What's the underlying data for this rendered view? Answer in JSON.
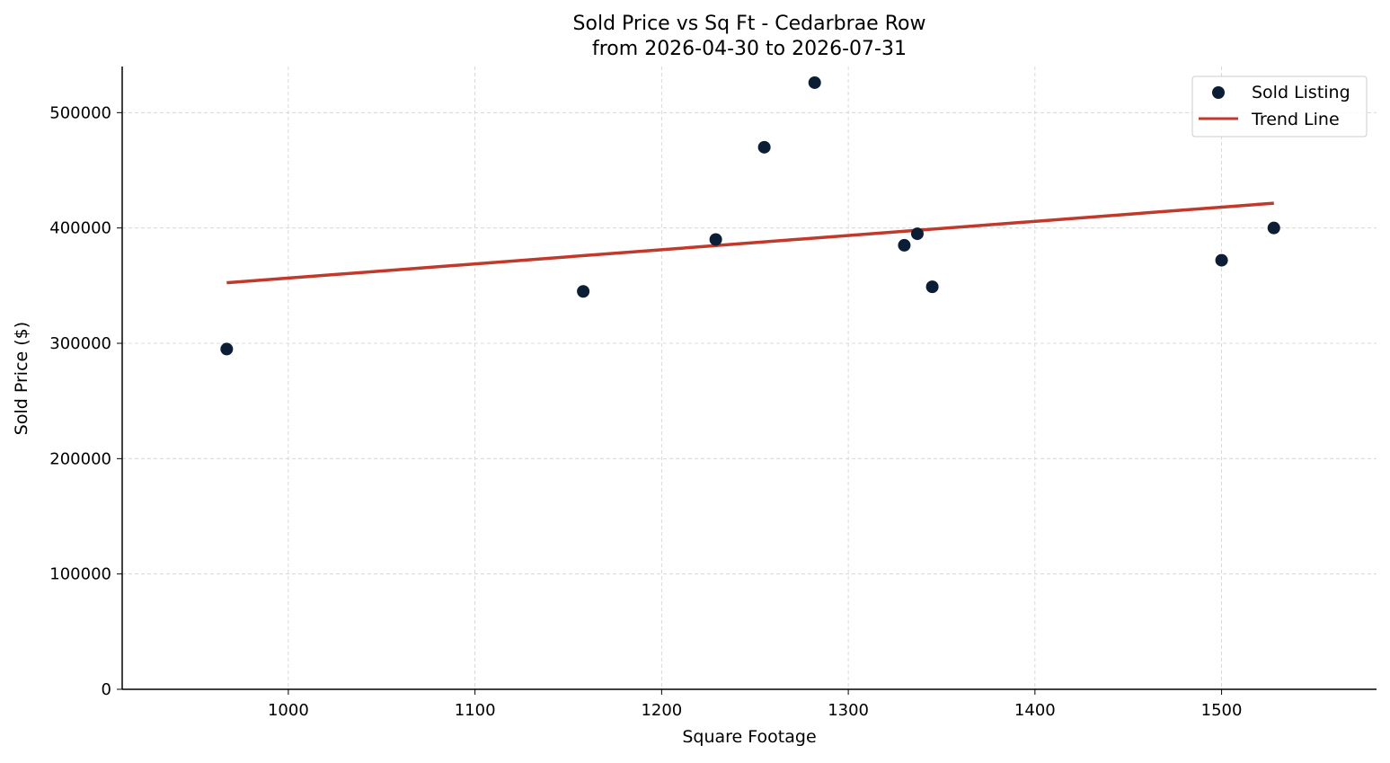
{
  "chart_data": {
    "type": "scatter",
    "title": "Sold Price vs Sq Ft - Cedarbrae Row",
    "subtitle": "from 2026-04-30 to 2026-07-31",
    "xlabel": "Square Footage",
    "ylabel": "Sold Price ($)",
    "xlim": [
      911,
      1583
    ],
    "ylim": [
      0,
      540000
    ],
    "x_ticks": [
      1000,
      1100,
      1200,
      1300,
      1400,
      1500
    ],
    "x_tick_labels": [
      "1000",
      "1100",
      "1200",
      "1300",
      "1400",
      "1500"
    ],
    "y_ticks": [
      0,
      100000,
      200000,
      300000,
      400000,
      500000
    ],
    "y_tick_labels": [
      "0",
      "100000",
      "200000",
      "300000",
      "400000",
      "500000"
    ],
    "grid": true,
    "legend_position": "top-right",
    "series": [
      {
        "name": "Sold Listing",
        "kind": "scatter",
        "color": "#0b1e35",
        "points": [
          {
            "x": 967,
            "y": 295000
          },
          {
            "x": 1158,
            "y": 345000
          },
          {
            "x": 1229,
            "y": 390000
          },
          {
            "x": 1255,
            "y": 470000
          },
          {
            "x": 1282,
            "y": 526000
          },
          {
            "x": 1330,
            "y": 385000
          },
          {
            "x": 1337,
            "y": 395000
          },
          {
            "x": 1345,
            "y": 349000
          },
          {
            "x": 1500,
            "y": 372000
          },
          {
            "x": 1528,
            "y": 400000
          }
        ]
      },
      {
        "name": "Trend Line",
        "kind": "line",
        "color": "#c0392b",
        "points": [
          {
            "x": 967,
            "y": 352500
          },
          {
            "x": 1528,
            "y": 421500
          }
        ]
      }
    ]
  }
}
